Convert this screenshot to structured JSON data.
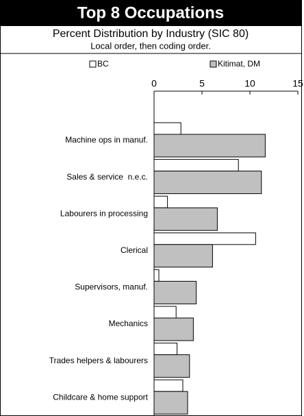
{
  "chart_data": {
    "type": "bar",
    "orientation": "horizontal",
    "title": "Top 8 Occupations",
    "subtitle": "Percent Distribution by Industry (SIC 80)",
    "note": "Local order, then coding order.",
    "categories": [
      "Machine ops in manuf.",
      "Sales & service  n.e.c.",
      "Labourers in processing",
      "Clerical",
      "Supervisors, manuf.",
      "Mechanics",
      "Trades helpers & labourers",
      "Childcare & home support"
    ],
    "series": [
      {
        "name": "BC",
        "color": "#ffffff",
        "values": [
          2.8,
          8.8,
          1.4,
          10.6,
          0.5,
          2.3,
          2.4,
          3.0
        ]
      },
      {
        "name": "Kitimat, DM",
        "color": "#c0c0c0",
        "values": [
          11.6,
          11.2,
          6.6,
          6.1,
          4.4,
          4.1,
          3.7,
          3.5
        ]
      }
    ],
    "xlim": [
      0,
      15
    ],
    "xticks": [
      0,
      5,
      10,
      15
    ],
    "legend": "top"
  }
}
